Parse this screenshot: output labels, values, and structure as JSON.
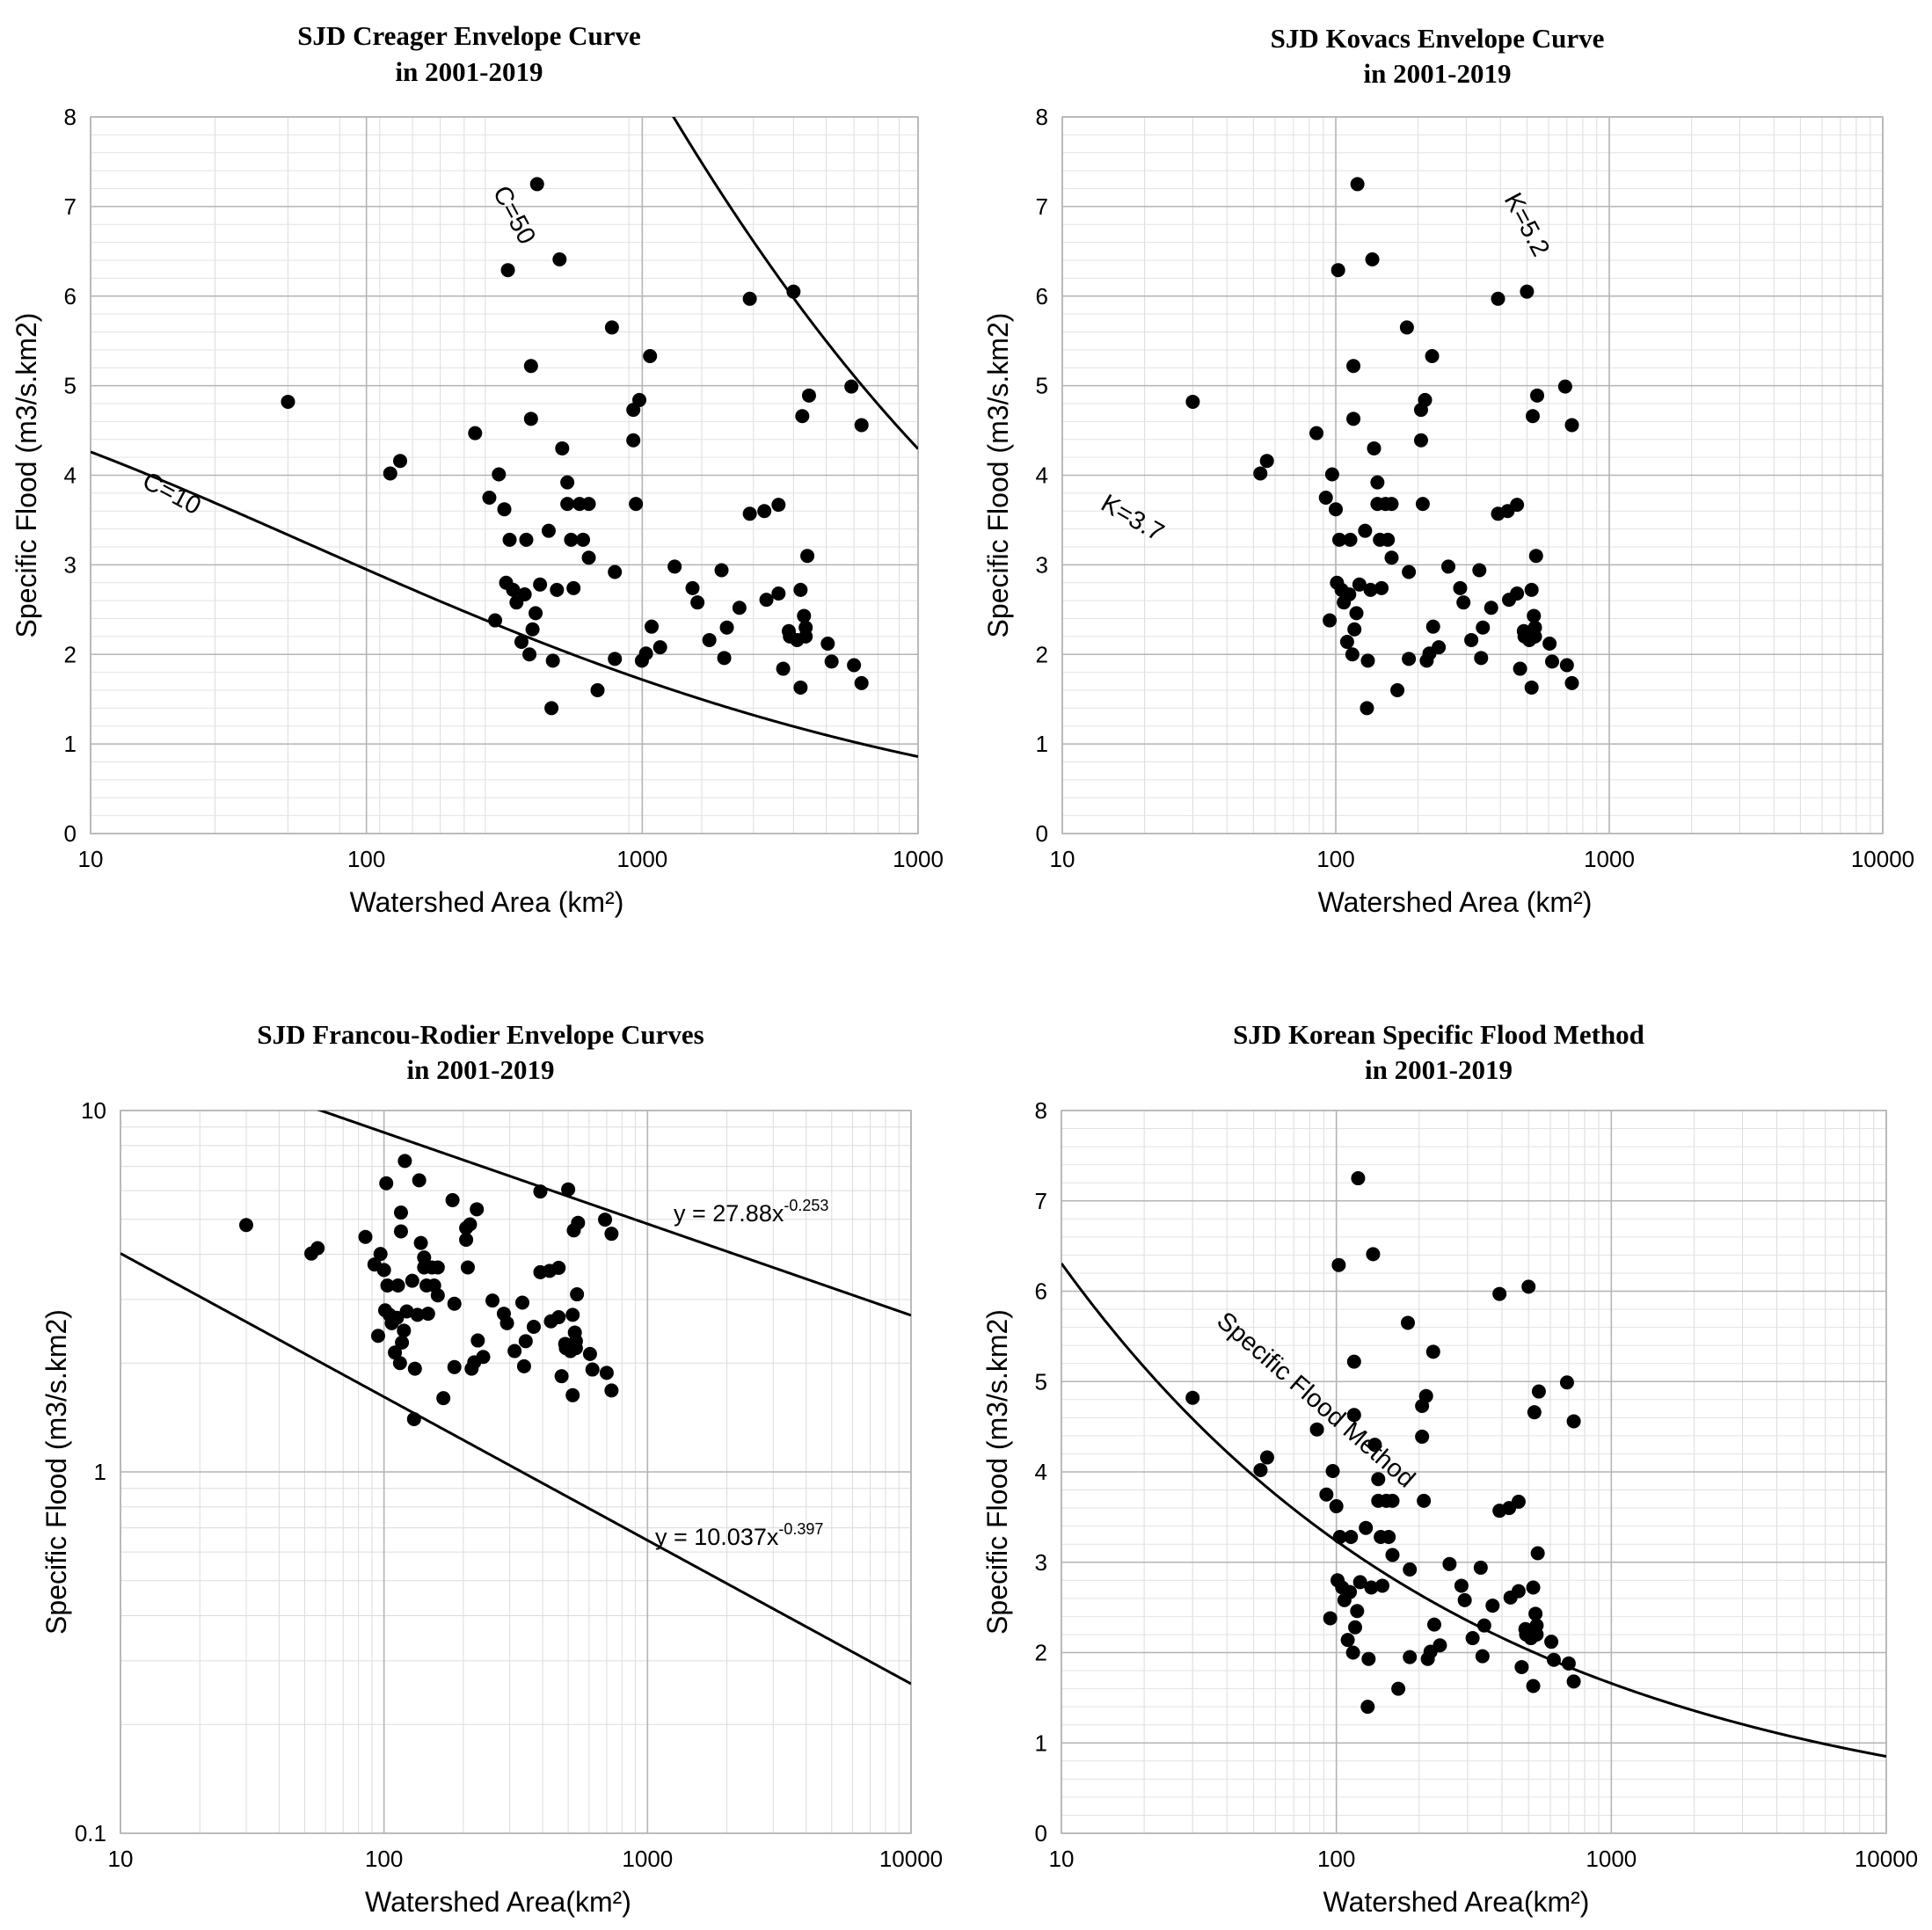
{
  "points": [
    [
      30,
      4.82
    ],
    [
      53,
      4.02
    ],
    [
      56,
      4.16
    ],
    [
      85,
      4.47
    ],
    [
      92,
      3.75
    ],
    [
      95,
      2.38
    ],
    [
      97,
      4.01
    ],
    [
      100,
      3.62
    ],
    [
      101,
      2.8
    ],
    [
      102,
      6.29
    ],
    [
      103,
      3.28
    ],
    [
      105,
      2.72
    ],
    [
      107,
      2.58
    ],
    [
      110,
      2.14
    ],
    [
      112,
      2.67
    ],
    [
      113,
      3.28
    ],
    [
      115,
      2.0
    ],
    [
      116,
      5.22
    ],
    [
      116,
      4.63
    ],
    [
      117,
      2.28
    ],
    [
      119,
      2.46
    ],
    [
      120,
      7.25
    ],
    [
      122,
      2.78
    ],
    [
      128,
      3.38
    ],
    [
      130,
      1.4
    ],
    [
      131,
      1.93
    ],
    [
      134,
      2.72
    ],
    [
      136,
      6.41
    ],
    [
      138,
      4.3
    ],
    [
      142,
      3.92
    ],
    [
      142,
      3.68
    ],
    [
      145,
      3.28
    ],
    [
      147,
      2.74
    ],
    [
      152,
      3.68
    ],
    [
      155,
      3.28
    ],
    [
      160,
      3.68
    ],
    [
      160,
      3.08
    ],
    [
      168,
      1.6
    ],
    [
      182,
      5.65
    ],
    [
      185,
      2.92
    ],
    [
      185,
      1.95
    ],
    [
      205,
      4.73
    ],
    [
      205,
      4.39
    ],
    [
      208,
      3.68
    ],
    [
      212,
      4.84
    ],
    [
      215,
      1.93
    ],
    [
      220,
      2.01
    ],
    [
      225,
      5.33
    ],
    [
      227,
      2.31
    ],
    [
      238,
      2.08
    ],
    [
      258,
      2.98
    ],
    [
      285,
      2.74
    ],
    [
      293,
      2.58
    ],
    [
      313,
      2.16
    ],
    [
      335,
      2.94
    ],
    [
      340,
      1.96
    ],
    [
      345,
      2.3
    ],
    [
      370,
      2.52
    ],
    [
      392,
      5.97
    ],
    [
      392,
      3.57
    ],
    [
      425,
      3.6
    ],
    [
      430,
      2.61
    ],
    [
      460,
      2.68
    ],
    [
      460,
      3.67
    ],
    [
      472,
      1.84
    ],
    [
      487,
      2.26
    ],
    [
      490,
      2.2
    ],
    [
      500,
      6.05
    ],
    [
      510,
      2.16
    ],
    [
      520,
      2.72
    ],
    [
      520,
      1.63
    ],
    [
      525,
      4.66
    ],
    [
      530,
      2.43
    ],
    [
      535,
      2.3
    ],
    [
      535,
      2.2
    ],
    [
      540,
      3.1
    ],
    [
      545,
      4.89
    ],
    [
      605,
      2.12
    ],
    [
      618,
      1.92
    ],
    [
      690,
      4.99
    ],
    [
      700,
      1.88
    ],
    [
      730,
      1.68
    ],
    [
      730,
      4.56
    ]
  ],
  "chart_data": [
    {
      "type": "scatter",
      "title": [
        "SJD Creager Envelope Curve",
        "in 2001-2019"
      ],
      "xlabel": "Watershed Area (km²)",
      "ylabel": "Specific Flood (m3/s.km2)",
      "xscale": "log",
      "xlim": [
        10,
        1000
      ],
      "ylim": [
        0,
        8
      ],
      "xticks": [
        "10",
        "100",
        "1000",
        "1000"
      ],
      "yticks": [
        "0",
        "1",
        "2",
        "3",
        "4",
        "5",
        "6",
        "7",
        "8"
      ],
      "grid": true,
      "curves": [
        {
          "label": "C=10",
          "kind": "creager",
          "C": 10
        },
        {
          "label": "C=50",
          "kind": "creager",
          "C": 50
        }
      ]
    },
    {
      "type": "scatter",
      "title": [
        "SJD Kovacs Envelope Curve",
        "in 2001-2019"
      ],
      "xlabel": "Watershed Area (km²)",
      "ylabel": "Specific Flood (m3/s.km2)",
      "xscale": "log",
      "xlim": [
        10,
        10000
      ],
      "ylim": [
        0,
        8
      ],
      "xticks": [
        "10",
        "100",
        "1000",
        "10000"
      ],
      "yticks": [
        "0",
        "1",
        "2",
        "3",
        "4",
        "5",
        "6",
        "7",
        "8"
      ],
      "grid": true,
      "curves": [
        {
          "label": "K=3.7",
          "kind": "kovacs",
          "K": 3.7
        },
        {
          "label": "K=5.2",
          "kind": "kovacs",
          "K": 5.2
        }
      ]
    },
    {
      "type": "scatter",
      "title": [
        "SJD Francou-Rodier Envelope Curves",
        "in 2001-2019"
      ],
      "xlabel": "Watershed Area(km²)",
      "ylabel": "Specific Flood (m3/s.km2)",
      "xscale": "log",
      "yscale": "log",
      "xlim": [
        10,
        10000
      ],
      "ylim": [
        0.1,
        10
      ],
      "xticks": [
        "10",
        "100",
        "1000",
        "10000"
      ],
      "yticks": [
        "0.1",
        "1",
        "10"
      ],
      "grid": true,
      "curves": [
        {
          "label": "y = 27.88x",
          "exponent_label": "-0.253",
          "kind": "power",
          "a": 27.88,
          "b": -0.253
        },
        {
          "label": "y = 10.037x",
          "exponent_label": "-0.397",
          "kind": "power",
          "a": 10.037,
          "b": -0.397
        }
      ]
    },
    {
      "type": "scatter",
      "title": [
        "SJD Korean Specific Flood Method",
        "in 2001-2019"
      ],
      "xlabel": "Watershed Area(km²)",
      "ylabel": "Specific Flood (m3/s.km2)",
      "xscale": "log",
      "xlim": [
        10,
        10000
      ],
      "ylim": [
        0,
        8
      ],
      "xticks": [
        "10",
        "100",
        "1000",
        "10000"
      ],
      "yticks": [
        "0",
        "1",
        "2",
        "3",
        "4",
        "5",
        "6",
        "7",
        "8"
      ],
      "grid": true,
      "curves": [
        {
          "label": "Specific Flood Method",
          "kind": "power",
          "a": 12.3,
          "b": -0.29
        }
      ]
    }
  ]
}
